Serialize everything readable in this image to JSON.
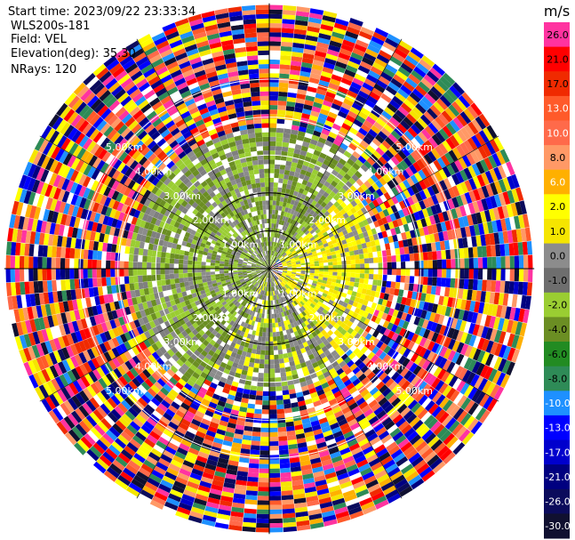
{
  "header": {
    "start_time_label": "Start time:",
    "start_time": "2023/09/22 23:33:34",
    "instrument": "WLS200s-181",
    "field_label": "Field:",
    "field": "VEL",
    "elevation_label": "Elevation(deg):",
    "elevation": "35.30",
    "nrays_label": "NRays:",
    "nrays": "120"
  },
  "chart_data": {
    "type": "heatmap",
    "projection": "polar PPI",
    "field": "VEL",
    "units": "m/s",
    "range_rings_km": [
      1.0,
      2.0,
      3.0,
      4.0,
      5.0
    ],
    "ring_labels": [
      "1.00km",
      "2.00km",
      "3.00km",
      "4.00km",
      "5.00km"
    ],
    "max_range_km": 7.0,
    "n_rays": 120,
    "colorbar": {
      "unit": "m/s",
      "ticks": [
        "26.0",
        "21.0",
        "17.0",
        "13.0",
        "10.0",
        "8.0",
        "6.0",
        "2.0",
        "1.0",
        "0.0",
        "-1.0",
        "-2.0",
        "-4.0",
        "-6.0",
        "-8.0",
        "-10.0",
        "-13.0",
        "-17.0",
        "-21.0",
        "-26.0",
        "-30.0"
      ],
      "colors": [
        "#ff33a0",
        "#ff0000",
        "#f02a00",
        "#ff5a2a",
        "#ff6a4a",
        "#ff9966",
        "#ffb000",
        "#ffff00",
        "#f5e500",
        "#8c8c8c",
        "#6e6e6e",
        "#9acd32",
        "#6b8e23",
        "#228b22",
        "#2e8b57",
        "#1e90ff",
        "#0000ff",
        "#0000cd",
        "#000080",
        "#0b0b5c",
        "#101030"
      ]
    },
    "sectors": [
      {
        "az_start": 0,
        "az_end": 45,
        "r_start_km": 0.0,
        "r_end_km": 3.6,
        "class": "green"
      },
      {
        "az_start": 45,
        "az_end": 140,
        "r_start_km": 0.3,
        "r_end_km": 3.0,
        "class": "yellow"
      },
      {
        "az_start": 140,
        "az_end": 210,
        "r_start_km": 0.0,
        "r_end_km": 3.2,
        "class": "gray"
      },
      {
        "az_start": 210,
        "az_end": 360,
        "r_start_km": 0.0,
        "r_end_km": 3.6,
        "class": "green"
      }
    ]
  }
}
